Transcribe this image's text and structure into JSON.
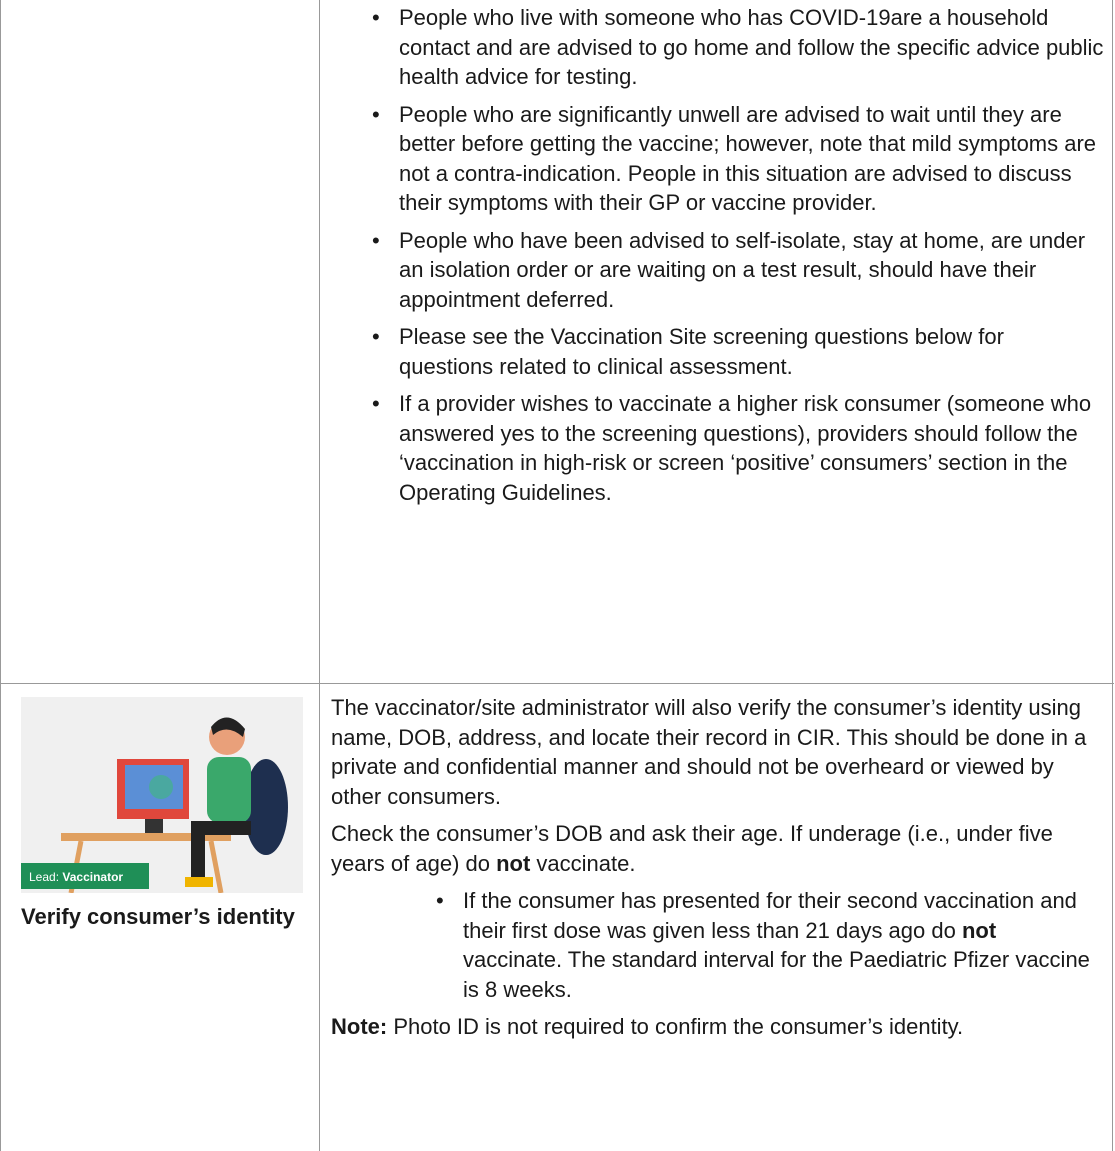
{
  "rows": [
    {
      "right": {
        "bullets": [
          "People who live with someone who has COVID-19are a household contact and are advised to go home and follow the specific advice public health advice for testing.",
          "People who are significantly unwell are advised to wait until they are better before getting the vaccine; however, note that mild symptoms are not a contra-indication. People in this situation are advised to discuss their symptoms with their GP or vaccine provider.",
          "People who have been advised to self-isolate, stay at home, are under an isolation order or are waiting on a test result, should have their appointment deferred.",
          "Please see the Vaccination Site screening questions below for questions related to clinical assessment.",
          "If a provider wishes to vaccinate a higher risk consumer (someone who answered yes to the screening questions), providers should follow the ‘vaccination in high-risk or screen ‘positive’ consumers’ section in the Operating Guidelines."
        ]
      }
    },
    {
      "left": {
        "badge_prefix": "Lead:",
        "badge_role": "Vaccinator",
        "heading": "Verify consumer’s identity"
      },
      "right": {
        "paragraph_1": "The vaccinator/site administrator will also verify the consumer’s identity using name, DOB, address, and locate their record in CIR. This should be done in a private and confidential manner and should not be overheard or viewed by other consumers.",
        "paragraph_2": [
          "Check the consumer’s DOB and ask their age. If underage (i.e., under five years of age) do ",
          "not",
          " vaccinate."
        ],
        "bullet": [
          "If the consumer has presented for their second vaccination and their first dose was given less than 21 days ago do ",
          "not",
          " vaccinate. The standard interval for the Paediatric Pfizer vaccine is 8 weeks."
        ],
        "note": [
          "Note:",
          " Photo ID is not required to confirm the consumer’s identity."
        ]
      }
    }
  ]
}
